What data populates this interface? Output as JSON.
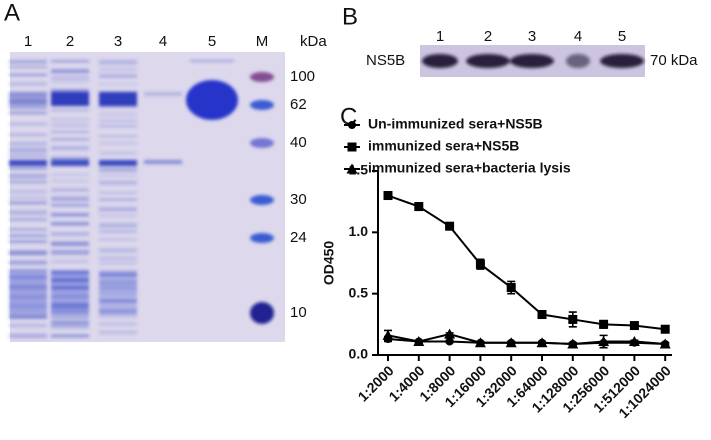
{
  "panel_a": {
    "label": "A",
    "lanes": [
      "1",
      "2",
      "3",
      "4",
      "5",
      "M"
    ],
    "unit": "kDa",
    "markers": [
      "100",
      "62",
      "40",
      "30",
      "24",
      "10"
    ]
  },
  "panel_b": {
    "label": "B",
    "lanes": [
      "1",
      "2",
      "3",
      "4",
      "5"
    ],
    "row_label": "NS5B",
    "size_label": "70 kDa"
  },
  "chart_data": {
    "type": "line",
    "panel_label": "C",
    "y_label": "OD450",
    "categories": [
      "1:2000",
      "1:4000",
      "1:8000",
      "1:16000",
      "1:32000",
      "1:64000",
      "1:128000",
      "1:256000",
      "1:512000",
      "1:1024000"
    ],
    "ylim": [
      0,
      1.5
    ],
    "yticks": [
      {
        "value": 0,
        "label": "0.0"
      },
      0.5,
      {
        "value": 1,
        "label": "1.0"
      },
      1.5
    ],
    "series": [
      {
        "name": "Un-immunized sera+NS5B",
        "color": "#000000",
        "marker": "circle",
        "values": [
          0.13,
          0.11,
          0.11,
          0.1,
          0.1,
          0.1,
          0.09,
          0.1,
          0.1,
          0.09
        ],
        "errors": [
          0.02,
          0.01,
          0.01,
          0.01,
          0.01,
          0.01,
          0.01,
          0.01,
          0.01,
          0.01
        ]
      },
      {
        "name": "immunized sera+NS5B",
        "color": "#000000",
        "marker": "square",
        "values": [
          1.3,
          1.21,
          1.05,
          0.74,
          0.55,
          0.33,
          0.29,
          0.25,
          0.24,
          0.21
        ],
        "errors": [
          0.03,
          0.03,
          0.02,
          0.04,
          0.05,
          0.03,
          0.06,
          0.03,
          0.01,
          0.01
        ]
      },
      {
        "name": "immunized sera+bacteria lysis",
        "color": "#000000",
        "marker": "triangle",
        "values": [
          0.16,
          0.11,
          0.17,
          0.1,
          0.1,
          0.1,
          0.09,
          0.11,
          0.11,
          0.09
        ],
        "errors": [
          0.04,
          0.01,
          0.01,
          0.01,
          0.01,
          0.01,
          0.01,
          0.05,
          0.01,
          0.01
        ]
      }
    ]
  }
}
